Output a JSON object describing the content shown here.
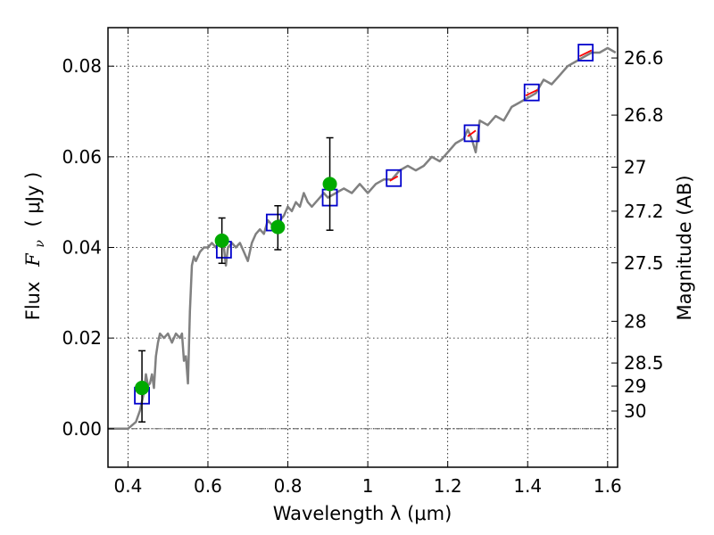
{
  "chart_data": {
    "type": "line",
    "xlabel": "Wavelength  λ (μm)",
    "ylabel": "Flux  Fν  ( μJy )",
    "ylabel_parts": {
      "word": "Flux",
      "symbol": "F",
      "subscript": "ν",
      "unit": "( μJy )"
    },
    "y2label": "Magnitude (AB)",
    "xlim": [
      0.35,
      1.625
    ],
    "ylim": [
      -0.0085,
      0.0885
    ],
    "grid": true,
    "x_ticks": [
      {
        "value": 0.4,
        "label": "0.4"
      },
      {
        "value": 0.6,
        "label": "0.6"
      },
      {
        "value": 0.8,
        "label": "0.8"
      },
      {
        "value": 1.0,
        "label": "1"
      },
      {
        "value": 1.2,
        "label": "1.2"
      },
      {
        "value": 1.4,
        "label": "1.4"
      },
      {
        "value": 1.6,
        "label": "1.6"
      }
    ],
    "y_ticks": [
      {
        "value": 0.0,
        "label": "0.00"
      },
      {
        "value": 0.02,
        "label": "0.02"
      },
      {
        "value": 0.04,
        "label": "0.04"
      },
      {
        "value": 0.06,
        "label": "0.06"
      },
      {
        "value": 0.08,
        "label": "0.08"
      }
    ],
    "magnitude_ticks": [
      {
        "label": "26.6",
        "flux": 0.0818
      },
      {
        "label": "26.8",
        "flux": 0.0692
      },
      {
        "label": "27",
        "flux": 0.0577
      },
      {
        "label": "27.2",
        "flux": 0.048
      },
      {
        "label": "27.5",
        "flux": 0.0366
      },
      {
        "label": "28",
        "flux": 0.0237
      },
      {
        "label": "28.5",
        "flux": 0.0145
      },
      {
        "label": "29",
        "flux": 0.0094
      },
      {
        "label": "30",
        "flux": 0.0039
      }
    ],
    "series": [
      {
        "type": "line",
        "color": "#808080",
        "x": [
          0.35,
          0.38,
          0.4,
          0.42,
          0.43,
          0.44,
          0.445,
          0.45,
          0.455,
          0.46,
          0.465,
          0.47,
          0.475,
          0.48,
          0.49,
          0.5,
          0.51,
          0.52,
          0.53,
          0.535,
          0.54,
          0.545,
          0.55,
          0.555,
          0.56,
          0.565,
          0.57,
          0.58,
          0.59,
          0.6,
          0.61,
          0.62,
          0.63,
          0.64,
          0.645,
          0.65,
          0.66,
          0.67,
          0.68,
          0.69,
          0.7,
          0.71,
          0.72,
          0.73,
          0.74,
          0.75,
          0.76,
          0.77,
          0.78,
          0.79,
          0.8,
          0.81,
          0.82,
          0.83,
          0.84,
          0.85,
          0.86,
          0.87,
          0.88,
          0.89,
          0.9,
          0.92,
          0.94,
          0.96,
          0.98,
          1.0,
          1.02,
          1.04,
          1.06,
          1.07,
          1.08,
          1.1,
          1.12,
          1.14,
          1.16,
          1.18,
          1.2,
          1.22,
          1.24,
          1.25,
          1.26,
          1.27,
          1.28,
          1.3,
          1.32,
          1.34,
          1.36,
          1.38,
          1.4,
          1.42,
          1.44,
          1.46,
          1.48,
          1.5,
          1.52,
          1.54,
          1.56,
          1.58,
          1.6,
          1.62
        ],
        "y": [
          0.0,
          0.0,
          0.0,
          0.0015,
          0.004,
          0.008,
          0.012,
          0.0095,
          0.01,
          0.012,
          0.009,
          0.016,
          0.019,
          0.021,
          0.02,
          0.021,
          0.019,
          0.021,
          0.02,
          0.021,
          0.015,
          0.016,
          0.01,
          0.026,
          0.036,
          0.038,
          0.037,
          0.039,
          0.04,
          0.04,
          0.041,
          0.04,
          0.042,
          0.04,
          0.036,
          0.04,
          0.041,
          0.04,
          0.041,
          0.039,
          0.037,
          0.041,
          0.043,
          0.044,
          0.043,
          0.046,
          0.045,
          0.044,
          0.046,
          0.047,
          0.049,
          0.048,
          0.05,
          0.049,
          0.052,
          0.05,
          0.049,
          0.05,
          0.051,
          0.052,
          0.051,
          0.052,
          0.053,
          0.052,
          0.054,
          0.052,
          0.054,
          0.055,
          0.055,
          0.056,
          0.057,
          0.058,
          0.057,
          0.058,
          0.06,
          0.059,
          0.061,
          0.063,
          0.064,
          0.066,
          0.064,
          0.061,
          0.068,
          0.067,
          0.069,
          0.068,
          0.071,
          0.072,
          0.073,
          0.074,
          0.077,
          0.076,
          0.078,
          0.08,
          0.081,
          0.082,
          0.083,
          0.083,
          0.084,
          0.083
        ]
      },
      {
        "type": "scatter",
        "marker": "circle",
        "color": "#00aa00",
        "x": [
          0.435,
          0.635,
          0.775,
          0.905
        ],
        "y": [
          0.009,
          0.0415,
          0.0445,
          0.054
        ],
        "yerr_low": [
          0.0015,
          0.0365,
          0.0395,
          0.0438
        ],
        "yerr_high": [
          0.0172,
          0.0465,
          0.0492,
          0.0642
        ]
      },
      {
        "type": "scatter",
        "marker": "square",
        "color": "#0000cc",
        "x": [
          0.435,
          0.64,
          0.765,
          0.905,
          1.065,
          1.26,
          1.41,
          1.545
        ],
        "y": [
          0.0073,
          0.0395,
          0.0455,
          0.051,
          0.0553,
          0.0652,
          0.0742,
          0.083
        ]
      },
      {
        "type": "line-segments",
        "color": "#ff0000",
        "segments": [
          [
            [
              1.055,
              0.0547
            ],
            [
              1.075,
              0.0557
            ]
          ],
          [
            [
              1.25,
              0.0645
            ],
            [
              1.27,
              0.0658
            ]
          ],
          [
            [
              1.395,
              0.0735
            ],
            [
              1.425,
              0.0748
            ]
          ],
          [
            [
              1.53,
              0.0822
            ],
            [
              1.56,
              0.0835
            ]
          ]
        ]
      }
    ]
  }
}
